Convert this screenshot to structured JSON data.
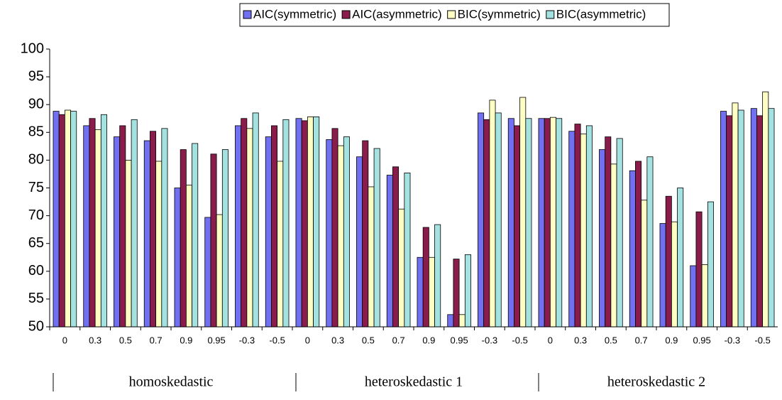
{
  "chart_data": {
    "type": "bar",
    "categories": [
      "0",
      "0.3",
      "0.5",
      "0.7",
      "0.9",
      "0.95",
      "-0.3",
      "-0.5",
      "0",
      "0.3",
      "0.5",
      "0.7",
      "0.9",
      "0.95",
      "-0.3",
      "-0.5",
      "0",
      "0.3",
      "0.5",
      "0.7",
      "0.9",
      "0.95",
      "-0.3",
      "-0.5"
    ],
    "series": [
      {
        "name": "AIC(symmetric)",
        "color": "#7070f0",
        "values": [
          88.8,
          86.2,
          84.2,
          83.5,
          75.0,
          69.7,
          86.2,
          84.2,
          87.5,
          83.7,
          80.6,
          77.3,
          62.5,
          52.2,
          88.5,
          87.5,
          87.5,
          85.2,
          81.9,
          78.1,
          68.6,
          61.0,
          88.8,
          89.3
        ]
      },
      {
        "name": "AIC(asymmetric)",
        "color": "#8a1c4c",
        "values": [
          88.2,
          87.5,
          86.2,
          85.2,
          81.9,
          81.1,
          87.5,
          86.2,
          87.1,
          85.7,
          83.5,
          78.8,
          67.9,
          62.2,
          87.3,
          86.2,
          87.5,
          86.5,
          84.2,
          79.8,
          73.5,
          70.7,
          88.0,
          88.0
        ]
      },
      {
        "name": "BIC(symmetric)",
        "color": "#ffffc4",
        "values": [
          89.0,
          85.5,
          80.0,
          79.8,
          75.5,
          70.2,
          85.7,
          79.8,
          87.8,
          82.6,
          75.2,
          71.2,
          62.5,
          52.2,
          90.8,
          91.3,
          87.7,
          84.7,
          79.3,
          72.8,
          68.9,
          61.2,
          90.3,
          92.3
        ]
      },
      {
        "name": "BIC(asymmetric)",
        "color": "#a4e2e2",
        "values": [
          88.8,
          88.2,
          87.3,
          85.7,
          83.0,
          81.9,
          88.5,
          87.3,
          87.8,
          84.2,
          82.1,
          77.7,
          68.4,
          63.0,
          88.5,
          87.5,
          87.5,
          86.2,
          83.9,
          80.6,
          75.0,
          72.5,
          89.0,
          89.3
        ]
      }
    ],
    "group_labels": [
      "homoskedastic",
      "heteroskedastic 1",
      "heteroskedastic 2"
    ],
    "ylim": [
      50,
      100
    ],
    "yticks": [
      50,
      55,
      60,
      65,
      70,
      75,
      80,
      85,
      90,
      95,
      100
    ]
  }
}
